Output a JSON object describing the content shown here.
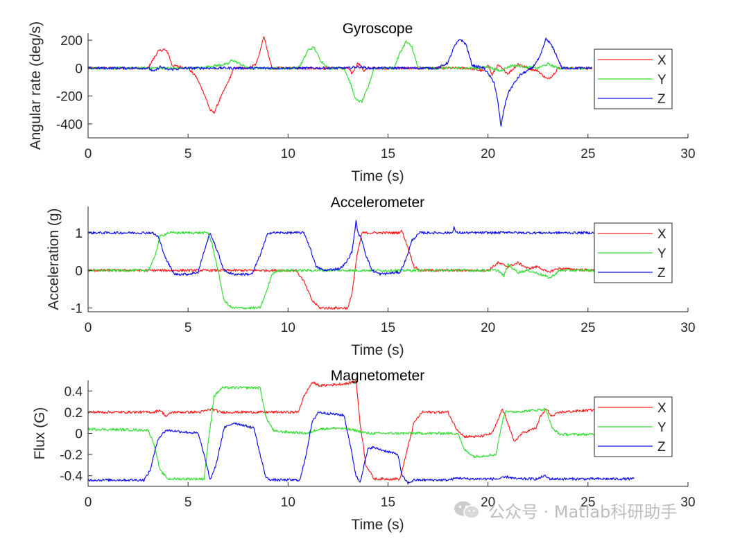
{
  "watermark": "公众号 · Matlab科研助手",
  "colors": {
    "X": "#ff2020",
    "Y": "#33dd33",
    "Z": "#1010ee",
    "axis": "#262626",
    "frame": "#000000"
  },
  "chart_data": [
    {
      "type": "line",
      "title": "Gyroscope",
      "xlabel": "Time (s)",
      "ylabel": "Angular rate (deg/s)",
      "xlim": [
        0,
        30
      ],
      "ylim": [
        -500,
        250
      ],
      "xticks": [
        0,
        5,
        10,
        15,
        20,
        25,
        30
      ],
      "yticks": [
        -400,
        -200,
        0,
        200
      ],
      "ytick_labels": [
        "-400",
        "-200",
        "0",
        "200"
      ],
      "legend": [
        "X",
        "Y",
        "Z"
      ],
      "legend_position": "right",
      "series": [
        {
          "name": "X",
          "x": [
            0,
            3.0,
            3.2,
            3.5,
            3.8,
            4.0,
            4.2,
            5.0,
            5.4,
            5.8,
            6.1,
            6.3,
            6.6,
            7.0,
            7.3,
            8.0,
            8.4,
            8.6,
            8.8,
            9.0,
            9.2,
            10.0,
            13.0,
            13.2,
            13.5,
            13.8,
            14.0,
            16.0,
            18.0,
            19.0,
            19.8,
            20.0,
            20.2,
            20.5,
            21.0,
            21.5,
            22.0,
            22.5,
            22.8,
            23.0,
            23.3,
            23.5,
            25.2
          ],
          "y": [
            0,
            0,
            50,
            120,
            135,
            110,
            20,
            0,
            -60,
            -180,
            -300,
            -320,
            -220,
            -100,
            0,
            0,
            30,
            120,
            230,
            100,
            0,
            0,
            0,
            -40,
            40,
            -20,
            0,
            0,
            0,
            0,
            -20,
            30,
            -50,
            20,
            -40,
            30,
            0,
            -20,
            -60,
            -80,
            -40,
            0,
            0
          ]
        },
        {
          "name": "Y",
          "x": [
            0,
            3.0,
            5.5,
            6.0,
            6.5,
            7.0,
            7.2,
            7.6,
            8.0,
            10.5,
            10.7,
            11.0,
            11.3,
            11.6,
            12.0,
            12.8,
            13.1,
            13.4,
            13.7,
            14.0,
            14.3,
            15.3,
            15.6,
            15.9,
            16.2,
            16.5,
            18.0,
            19.5,
            20.0,
            20.6,
            21.2,
            22.5,
            23.0,
            23.5,
            25.2
          ],
          "y": [
            0,
            0,
            0,
            10,
            20,
            30,
            60,
            30,
            0,
            0,
            40,
            130,
            150,
            60,
            0,
            0,
            -100,
            -230,
            -240,
            -140,
            0,
            0,
            110,
            190,
            150,
            0,
            0,
            0,
            10,
            -20,
            20,
            0,
            30,
            0,
            0
          ]
        },
        {
          "name": "Z",
          "x": [
            0,
            3.0,
            3.3,
            3.6,
            4.0,
            5.0,
            10.0,
            13.0,
            13.5,
            14.0,
            17.5,
            18.0,
            18.3,
            18.6,
            18.9,
            19.2,
            19.8,
            20.3,
            20.5,
            20.65,
            20.8,
            21.0,
            21.3,
            21.6,
            22.2,
            22.6,
            22.9,
            23.1,
            23.3,
            23.7,
            25.2
          ],
          "y": [
            0,
            0,
            -25,
            10,
            -10,
            0,
            0,
            0,
            10,
            0,
            0,
            40,
            150,
            210,
            170,
            20,
            0,
            -100,
            -250,
            -420,
            -290,
            -180,
            -110,
            -50,
            0,
            80,
            210,
            180,
            130,
            0,
            0
          ]
        }
      ]
    },
    {
      "type": "line",
      "title": "Accelerometer",
      "xlabel": "Time (s)",
      "ylabel": "Acceleration (g)",
      "xlim": [
        0,
        30
      ],
      "ylim": [
        -1.1,
        1.7
      ],
      "xticks": [
        0,
        5,
        10,
        15,
        20,
        25,
        30
      ],
      "yticks": [
        -1,
        0,
        1
      ],
      "ytick_labels": [
        "-1",
        "0",
        "1"
      ],
      "legend": [
        "X",
        "Y",
        "Z"
      ],
      "legend_position": "right",
      "series": [
        {
          "name": "X",
          "x": [
            0,
            10.4,
            10.8,
            11.2,
            11.6,
            12.0,
            13.0,
            13.2,
            13.45,
            13.7,
            14.0,
            15.5,
            15.7,
            16.0,
            16.3,
            16.6,
            20.0,
            20.5,
            21.0,
            21.5,
            22.0,
            22.5,
            23.0,
            23.5,
            25.3
          ],
          "y": [
            0,
            0,
            -0.3,
            -0.8,
            -1.0,
            -1.0,
            -1.0,
            -0.6,
            0.4,
            1.0,
            1.0,
            1.0,
            1.05,
            0.6,
            0.1,
            0,
            0,
            0.2,
            0.1,
            0.2,
            0.05,
            0.1,
            -0.05,
            0.05,
            0
          ]
        },
        {
          "name": "Y",
          "x": [
            0,
            3.0,
            3.3,
            3.6,
            4.0,
            6.0,
            6.2,
            6.5,
            6.8,
            7.2,
            8.6,
            8.9,
            9.2,
            9.5,
            10.0,
            20.5,
            20.8,
            21.0,
            21.5,
            22.0,
            22.6,
            23.1,
            23.6,
            25.3
          ],
          "y": [
            0,
            0,
            0.3,
            0.9,
            1.0,
            1.0,
            0.7,
            0.0,
            -0.8,
            -1.0,
            -1.0,
            -0.6,
            -0.1,
            0,
            0,
            0,
            -0.15,
            0.15,
            -0.05,
            0,
            -0.1,
            -0.2,
            0,
            0
          ]
        },
        {
          "name": "Z",
          "x": [
            0,
            3.2,
            3.5,
            3.9,
            4.3,
            5.0,
            5.5,
            5.8,
            6.1,
            6.4,
            6.8,
            7.2,
            8.2,
            8.6,
            9.0,
            10.8,
            11.1,
            11.4,
            11.8,
            12.6,
            12.9,
            13.2,
            13.4,
            13.5,
            13.7,
            13.9,
            14.2,
            14.6,
            15.6,
            15.9,
            16.2,
            16.6,
            17.5,
            18.2,
            18.3,
            18.4,
            20.5,
            21.0,
            21.5,
            25.3
          ],
          "y": [
            1.0,
            1.0,
            0.9,
            0.3,
            -0.1,
            -0.1,
            -0.05,
            0.5,
            1.0,
            0.6,
            0.0,
            -0.1,
            -0.1,
            0.4,
            1.0,
            1.0,
            0.6,
            0.1,
            0.0,
            0.05,
            0.2,
            0.5,
            1.3,
            1.0,
            0.8,
            0.4,
            0.0,
            -0.1,
            -0.05,
            0.3,
            0.8,
            1.0,
            1.0,
            1.0,
            1.15,
            1.0,
            1.0,
            1.02,
            1.0,
            1.0
          ]
        }
      ]
    },
    {
      "type": "line",
      "title": "Magnetometer",
      "xlabel": "Time (s)",
      "ylabel": "Flux (G)",
      "xlim": [
        0,
        30
      ],
      "ylim": [
        -0.5,
        0.5
      ],
      "xticks": [
        0,
        5,
        10,
        15,
        20,
        25,
        30
      ],
      "yticks": [
        -0.4,
        -0.2,
        0,
        0.2,
        0.4
      ],
      "ytick_labels": [
        "-0.4",
        "-0.2",
        "0",
        "0.2",
        "0.4"
      ],
      "legend": [
        "X",
        "Y",
        "Z"
      ],
      "legend_position": "right",
      "series": [
        {
          "name": "X",
          "x": [
            0,
            3.3,
            3.6,
            3.9,
            4.2,
            5.6,
            6.2,
            6.6,
            10.5,
            10.8,
            11.2,
            11.6,
            13.0,
            13.4,
            13.6,
            13.9,
            14.3,
            15.6,
            15.9,
            16.3,
            16.7,
            18.0,
            18.4,
            18.8,
            19.6,
            20.2,
            20.5,
            20.7,
            20.9,
            21.3,
            21.7,
            22.1,
            22.4,
            22.6,
            22.9,
            23.2,
            23.6,
            25.3
          ],
          "y": [
            0.2,
            0.2,
            0.22,
            0.16,
            0.2,
            0.2,
            0.23,
            0.2,
            0.2,
            0.35,
            0.48,
            0.45,
            0.47,
            0.5,
            0.1,
            -0.3,
            -0.43,
            -0.43,
            -0.2,
            0.1,
            0.2,
            0.2,
            0.05,
            -0.03,
            -0.03,
            0.0,
            0.12,
            0.23,
            0.15,
            -0.08,
            0.0,
            0.03,
            0.05,
            0.15,
            0.23,
            0.16,
            0.2,
            0.22
          ]
        },
        {
          "name": "Y",
          "x": [
            0,
            3.0,
            3.3,
            3.6,
            4.0,
            5.8,
            6.0,
            6.3,
            6.7,
            8.6,
            8.9,
            9.3,
            11.0,
            11.5,
            12.5,
            13.3,
            14.0,
            18.5,
            18.8,
            19.3,
            20.4,
            20.7,
            20.9,
            21.1,
            22.5,
            22.9,
            23.2,
            23.6,
            25.3
          ],
          "y": [
            0.04,
            0.03,
            -0.1,
            -0.35,
            -0.43,
            -0.43,
            -0.1,
            0.35,
            0.43,
            0.43,
            0.15,
            0.02,
            0.0,
            0.04,
            0.05,
            0.03,
            0.0,
            0.0,
            -0.15,
            -0.22,
            -0.2,
            0.1,
            0.22,
            0.2,
            0.22,
            0.23,
            0.05,
            -0.01,
            -0.01
          ]
        },
        {
          "name": "Z",
          "x": [
            0,
            2.8,
            3.1,
            3.5,
            3.9,
            5.5,
            5.8,
            6.1,
            6.4,
            6.8,
            7.3,
            8.3,
            8.6,
            8.9,
            9.2,
            10.6,
            10.9,
            11.2,
            11.5,
            12.8,
            13.1,
            13.4,
            13.6,
            13.8,
            14.0,
            14.2,
            15.5,
            15.7,
            16.0,
            16.3,
            18.0,
            18.5,
            19.0,
            20.5,
            21.0,
            21.4,
            22.5,
            22.8,
            23.1,
            25.0,
            27.3
          ],
          "y": [
            -0.44,
            -0.44,
            -0.35,
            -0.05,
            0.03,
            0.0,
            -0.2,
            -0.44,
            -0.3,
            0.05,
            0.1,
            0.05,
            -0.2,
            -0.42,
            -0.44,
            -0.44,
            -0.2,
            0.1,
            0.2,
            0.17,
            -0.1,
            -0.4,
            -0.46,
            -0.3,
            -0.15,
            -0.13,
            -0.2,
            -0.4,
            -0.47,
            -0.44,
            -0.44,
            -0.42,
            -0.43,
            -0.43,
            -0.41,
            -0.43,
            -0.43,
            -0.4,
            -0.43,
            -0.43,
            -0.43
          ]
        }
      ]
    }
  ]
}
